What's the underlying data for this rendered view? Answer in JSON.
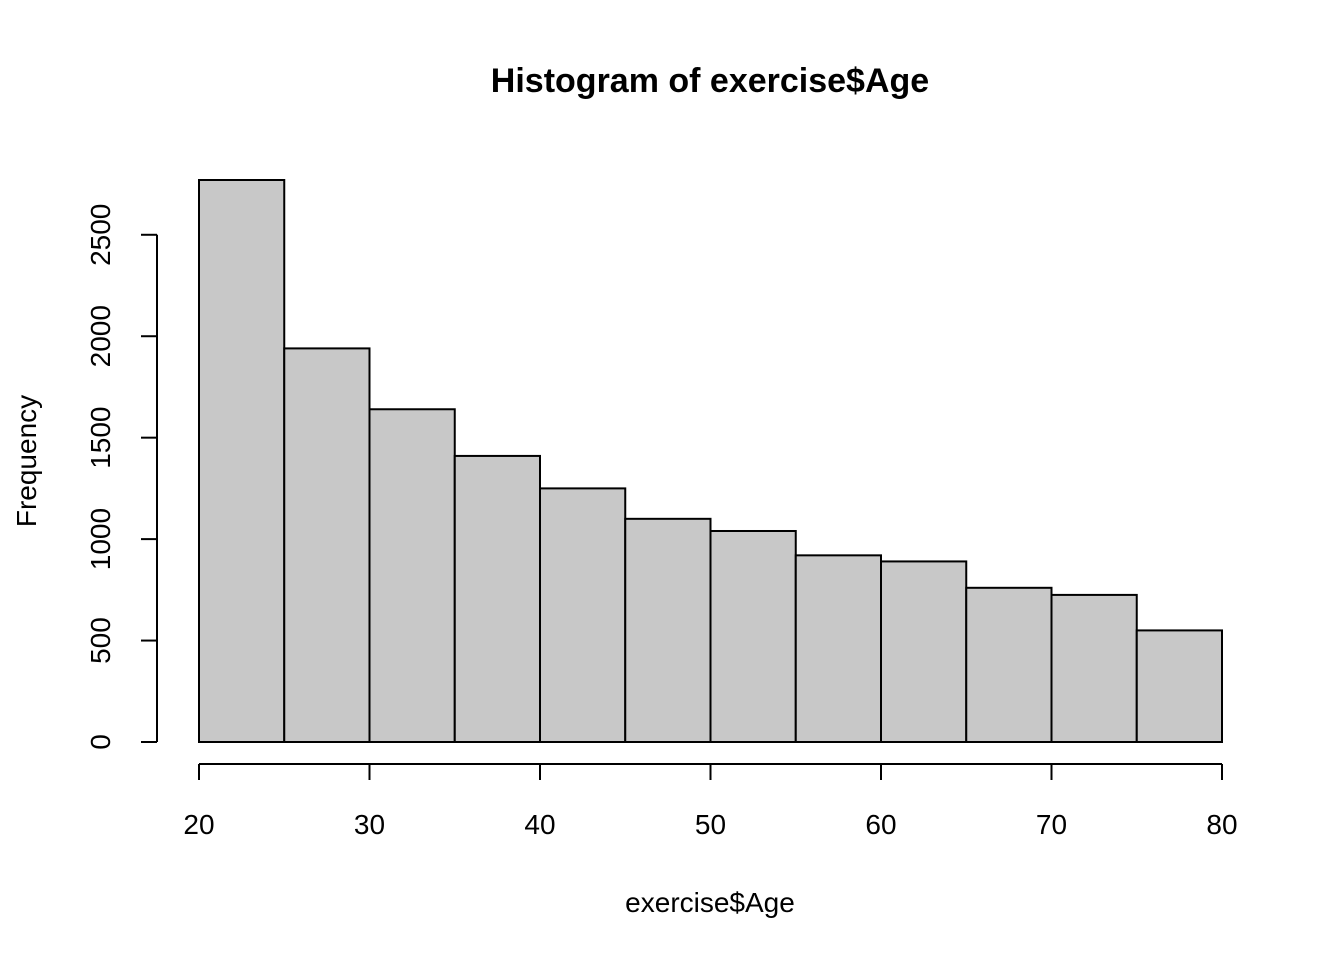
{
  "chart_data": {
    "type": "bar",
    "title": "Histogram of exercise$Age",
    "xlabel": "exercise$Age",
    "ylabel": "Frequency",
    "bin_edges": [
      20,
      25,
      30,
      35,
      40,
      45,
      50,
      55,
      60,
      65,
      70,
      75,
      80
    ],
    "values": [
      2770,
      1940,
      1640,
      1410,
      1250,
      1100,
      1040,
      920,
      890,
      760,
      725,
      550
    ],
    "xlim": [
      20,
      80
    ],
    "ylim": [
      0,
      2770
    ],
    "x_ticks": [
      20,
      30,
      40,
      50,
      60,
      70,
      80
    ],
    "y_ticks": [
      0,
      500,
      1000,
      1500,
      2000,
      2500
    ],
    "bar_color": "#c8c8c8",
    "grid": false,
    "legend": "none"
  }
}
